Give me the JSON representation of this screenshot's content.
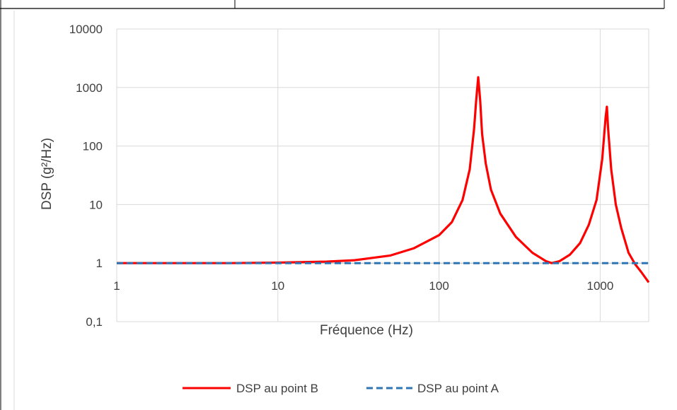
{
  "chart_data": {
    "type": "line",
    "title": "",
    "xlabel": "Fréquence (Hz)",
    "ylabel": "DSP (g²/Hz)",
    "x_scale": "log",
    "y_scale": "log",
    "xlim": [
      1,
      2000
    ],
    "ylim": [
      0.1,
      10000
    ],
    "x_ticks": [
      "1",
      "10",
      "100",
      "1000"
    ],
    "y_ticks": [
      "10000",
      "1000",
      "100",
      "10",
      "1",
      "0,1"
    ],
    "grid": true,
    "legend_position": "bottom",
    "series": [
      {
        "name": "DSP au point B",
        "color": "#ff0000",
        "style": "solid",
        "x": [
          1,
          5,
          10,
          20,
          30,
          50,
          70,
          100,
          120,
          140,
          155,
          165,
          170,
          175,
          180,
          185,
          195,
          210,
          240,
          300,
          380,
          460,
          500,
          560,
          650,
          750,
          850,
          950,
          1030,
          1080,
          1100,
          1120,
          1170,
          1250,
          1350,
          1500,
          1650,
          1800,
          2000
        ],
        "y": [
          1,
          1,
          1.02,
          1.06,
          1.12,
          1.35,
          1.8,
          3,
          5,
          12,
          40,
          200,
          600,
          1500,
          600,
          160,
          50,
          18,
          7,
          2.8,
          1.5,
          1.08,
          1,
          1.08,
          1.4,
          2.2,
          4.5,
          12,
          60,
          300,
          470,
          200,
          40,
          10,
          4,
          1.5,
          0.95,
          0.7,
          0.47
        ]
      },
      {
        "name": "DSP au point A",
        "color": "#2e75b6",
        "style": "dashed",
        "x": [
          1,
          2000
        ],
        "y": [
          1,
          1
        ]
      }
    ]
  }
}
